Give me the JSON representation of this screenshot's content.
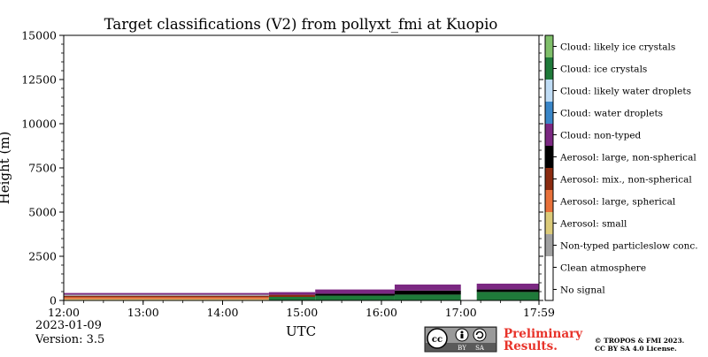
{
  "chart_data": {
    "type": "heatmap",
    "title": "Target classifications (V2) from pollyxt_fmi at Kuopio",
    "xlabel": "UTC",
    "ylabel": "Height (m)",
    "xlim": [
      "12:00",
      "17:59"
    ],
    "ylim": [
      0,
      15000
    ],
    "x_ticks": [
      "12:00",
      "13:00",
      "14:00",
      "15:00",
      "16:00",
      "17:00",
      "17:59"
    ],
    "y_ticks": [
      0,
      2500,
      5000,
      7500,
      10000,
      12500,
      15000
    ],
    "legend_position": "right",
    "classes": [
      {
        "label": "Cloud: likely ice crystals",
        "color": "#7fbf6a"
      },
      {
        "label": "Cloud: ice crystals",
        "color": "#1f7a3a"
      },
      {
        "label": "Cloud: likely water droplets",
        "color": "#bfdcf5"
      },
      {
        "label": "Cloud: water droplets",
        "color": "#3a86c8"
      },
      {
        "label": "Cloud: non-typed",
        "color": "#7b2882"
      },
      {
        "label": "Aerosol: large, non-spherical",
        "color": "#000000"
      },
      {
        "label": "Aerosol: mix., non-spherical",
        "color": "#8b2b10"
      },
      {
        "label": "Aerosol: large, spherical",
        "color": "#e8713a"
      },
      {
        "label": "Aerosol: small",
        "color": "#dccb7a"
      },
      {
        "label": "Non-typed particleslow conc.",
        "color": "#a0a0a0"
      },
      {
        "label": "Clean atmosphere",
        "color": "#ffffff"
      },
      {
        "label": "No signal",
        "color": "#ffffff"
      }
    ],
    "segments": [
      {
        "start": "12:00",
        "end": "14:35",
        "layers": [
          {
            "cls": 8,
            "bottom": 0,
            "top": 80
          },
          {
            "cls": 7,
            "bottom": 80,
            "top": 180
          },
          {
            "cls": 6,
            "bottom": 180,
            "top": 260
          },
          {
            "cls": 9,
            "bottom": 260,
            "top": 330
          },
          {
            "cls": 4,
            "bottom": 330,
            "top": 420
          }
        ]
      },
      {
        "start": "14:35",
        "end": "15:10",
        "layers": [
          {
            "cls": 1,
            "bottom": 0,
            "top": 200
          },
          {
            "cls": 6,
            "bottom": 200,
            "top": 320
          },
          {
            "cls": 4,
            "bottom": 320,
            "top": 470
          }
        ]
      },
      {
        "start": "15:10",
        "end": "16:10",
        "layers": [
          {
            "cls": 1,
            "bottom": 0,
            "top": 270
          },
          {
            "cls": 5,
            "bottom": 270,
            "top": 380
          },
          {
            "cls": 4,
            "bottom": 380,
            "top": 620
          }
        ]
      },
      {
        "start": "16:10",
        "end": "17:00",
        "layers": [
          {
            "cls": 1,
            "bottom": 0,
            "top": 330
          },
          {
            "cls": 5,
            "bottom": 330,
            "top": 560
          },
          {
            "cls": 4,
            "bottom": 560,
            "top": 900
          }
        ]
      },
      {
        "start": "17:12",
        "end": "17:59",
        "layers": [
          {
            "cls": 1,
            "bottom": 0,
            "top": 480
          },
          {
            "cls": 5,
            "bottom": 480,
            "top": 620
          },
          {
            "cls": 4,
            "bottom": 620,
            "top": 950
          }
        ]
      }
    ]
  },
  "footer": {
    "date": "2023-01-09",
    "version": "Version: 3.5",
    "preliminary_line1": "Preliminary",
    "preliminary_line2": "Results.",
    "copyright_line1": "© TROPOS & FMI 2023.",
    "copyright_line2": "CC BY SA 4.0 License.",
    "license_badge_by": "BY",
    "license_badge_sa": "SA",
    "license_badge_cc": "cc"
  },
  "colors": {
    "preliminary": "#e8332a",
    "badge_bg": "#5a5a5a"
  }
}
